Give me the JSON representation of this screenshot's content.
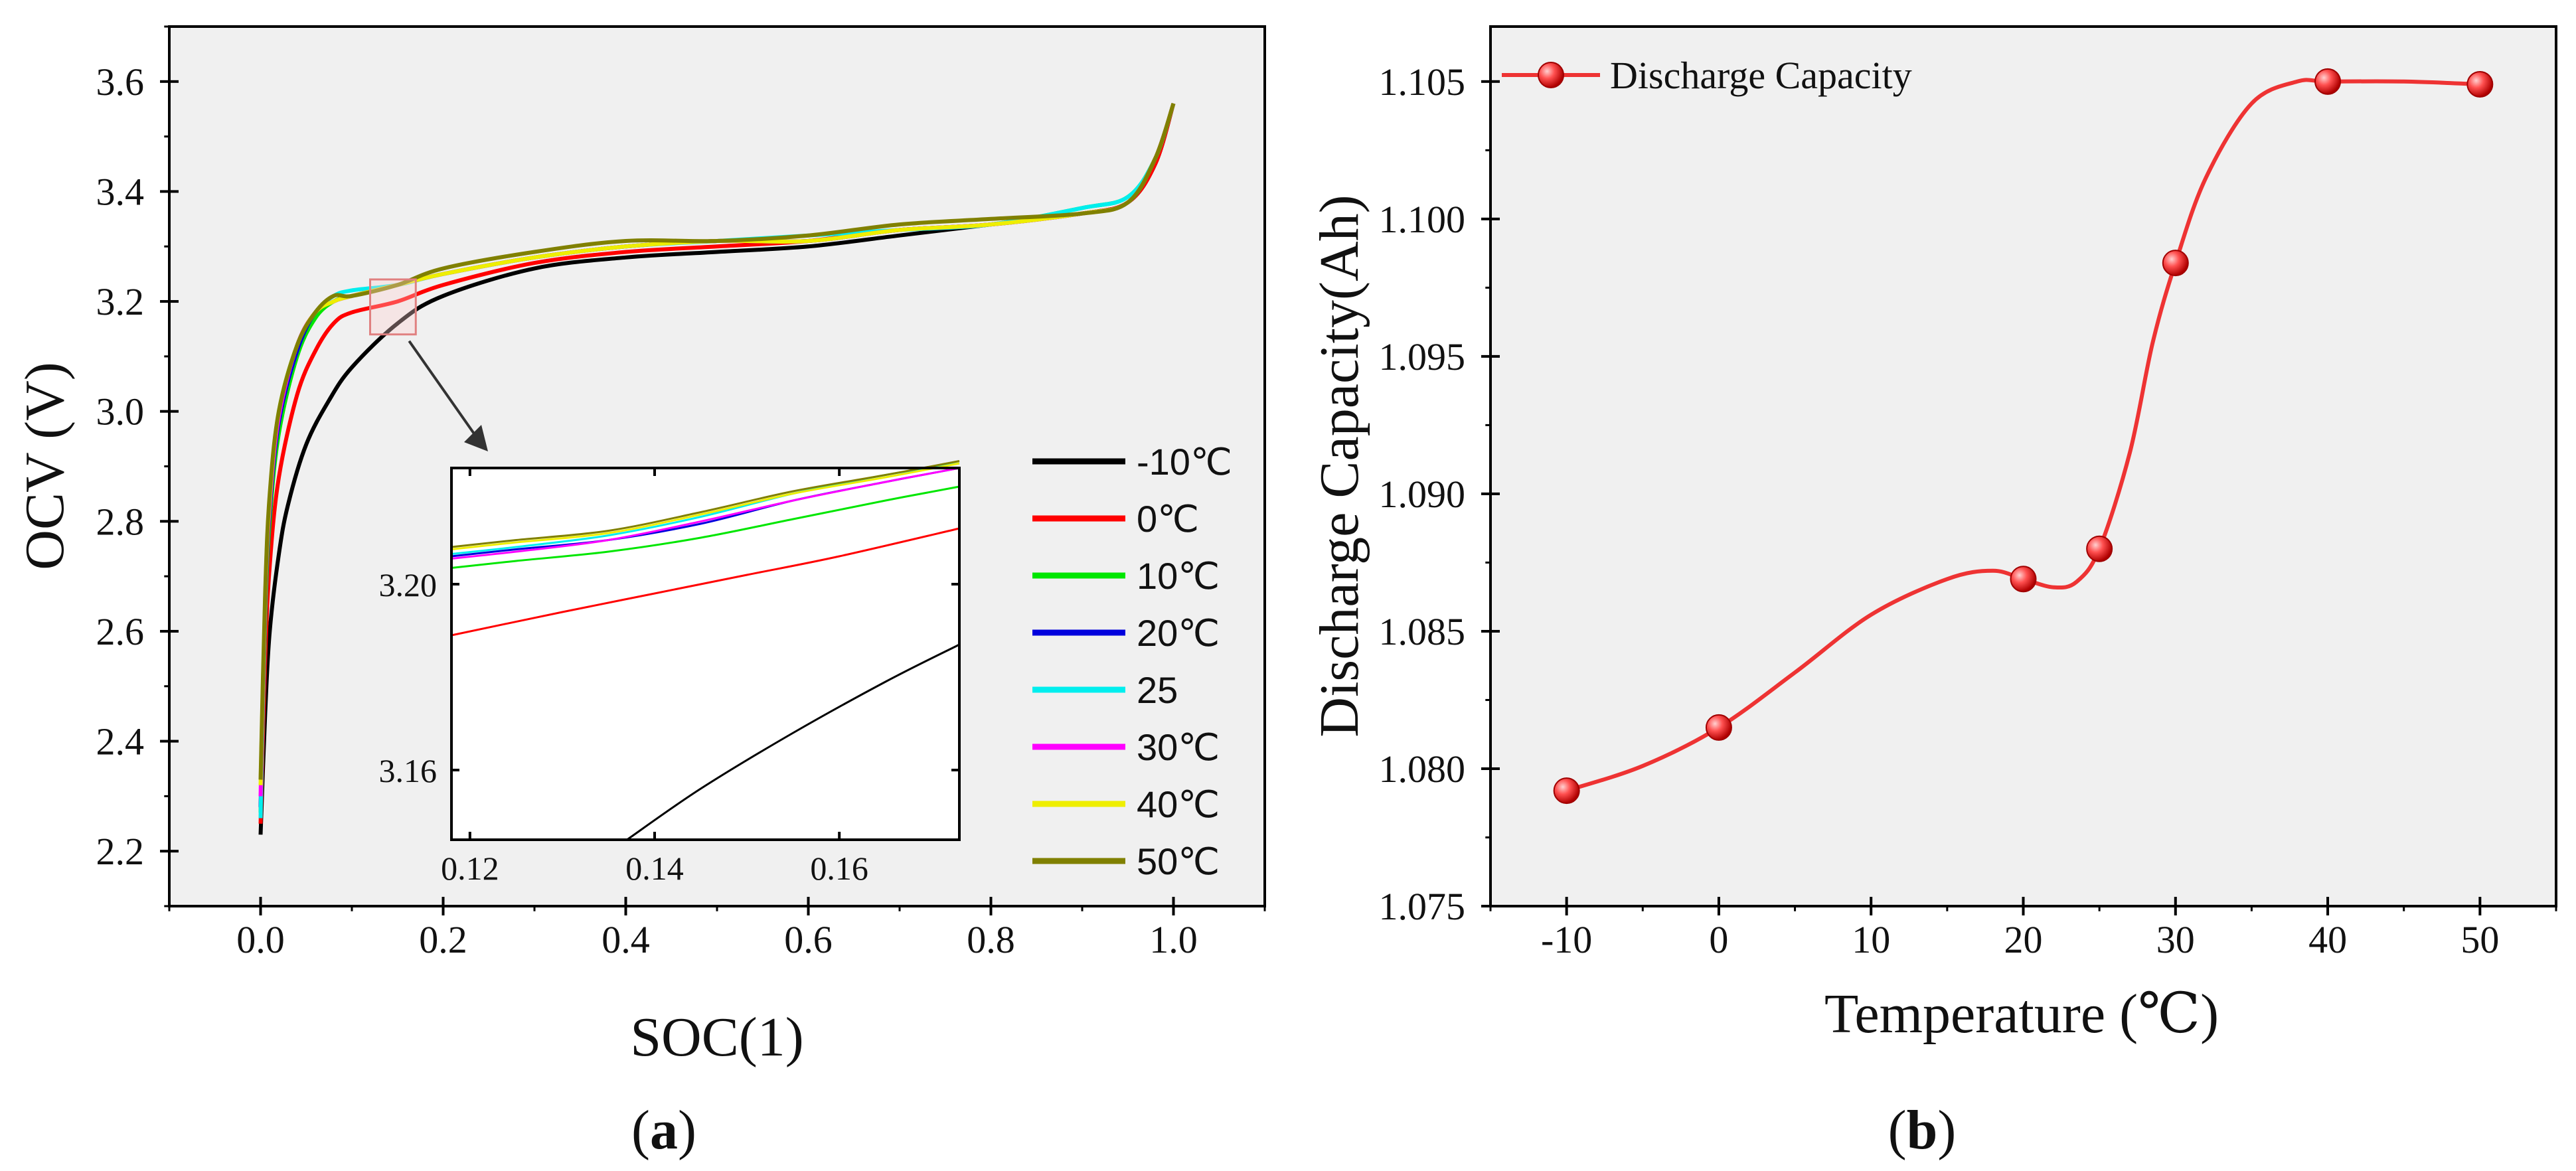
{
  "figure_labels": {
    "a": "(a)",
    "a_letter": "a",
    "b": "(b)",
    "b_letter": "b"
  },
  "chart_data": [
    {
      "id": "a",
      "type": "line",
      "title": "",
      "xlabel": "SOC(1)",
      "ylabel": "OCV (V)",
      "xlim": [
        -0.1,
        1.1
      ],
      "ylim": [
        2.1,
        3.7
      ],
      "xticks": [
        "0.0",
        "0.2",
        "0.4",
        "0.6",
        "0.8",
        "1.0"
      ],
      "yticks": [
        "2.2",
        "2.4",
        "2.6",
        "2.8",
        "3.0",
        "3.2",
        "3.4",
        "3.6"
      ],
      "legend_position": "right",
      "series": [
        {
          "name": "-10℃",
          "color": "#000000",
          "x": [
            0,
            0.005,
            0.01,
            0.02,
            0.03,
            0.05,
            0.075,
            0.1,
            0.15,
            0.2,
            0.3,
            0.4,
            0.5,
            0.6,
            0.7,
            0.8,
            0.9,
            0.95,
            0.98,
            1.0
          ],
          "y": [
            2.23,
            2.45,
            2.6,
            2.74,
            2.83,
            2.94,
            3.02,
            3.08,
            3.16,
            3.21,
            3.26,
            3.28,
            3.29,
            3.3,
            3.32,
            3.34,
            3.36,
            3.38,
            3.45,
            3.56
          ]
        },
        {
          "name": "0℃",
          "color": "#ff0000",
          "x": [
            0,
            0.005,
            0.01,
            0.02,
            0.04,
            0.06,
            0.08,
            0.1,
            0.15,
            0.2,
            0.3,
            0.4,
            0.5,
            0.6,
            0.7,
            0.8,
            0.9,
            0.95,
            0.98,
            1.0
          ],
          "y": [
            2.25,
            2.55,
            2.72,
            2.88,
            3.03,
            3.11,
            3.16,
            3.18,
            3.2,
            3.23,
            3.27,
            3.29,
            3.3,
            3.31,
            3.33,
            3.34,
            3.36,
            3.38,
            3.45,
            3.56
          ]
        },
        {
          "name": "10℃",
          "color": "#00e600",
          "x": [
            0,
            0.005,
            0.01,
            0.02,
            0.04,
            0.06,
            0.08,
            0.1,
            0.15,
            0.2,
            0.3,
            0.4,
            0.5,
            0.6,
            0.7,
            0.8,
            0.9,
            0.95,
            0.98,
            1.0
          ],
          "y": [
            2.27,
            2.62,
            2.8,
            2.96,
            3.1,
            3.17,
            3.2,
            3.21,
            3.23,
            3.25,
            3.28,
            3.3,
            3.31,
            3.31,
            3.33,
            3.34,
            3.37,
            3.39,
            3.46,
            3.56
          ]
        },
        {
          "name": "20℃",
          "color": "#0000dd",
          "x": [
            0,
            0.005,
            0.01,
            0.02,
            0.04,
            0.06,
            0.08,
            0.1,
            0.15,
            0.2,
            0.3,
            0.4,
            0.5,
            0.6,
            0.7,
            0.8,
            0.9,
            0.95,
            0.98,
            1.0
          ],
          "y": [
            2.28,
            2.64,
            2.82,
            2.98,
            3.11,
            3.18,
            3.2,
            3.21,
            3.23,
            3.25,
            3.28,
            3.3,
            3.31,
            3.31,
            3.33,
            3.34,
            3.36,
            3.38,
            3.46,
            3.56
          ]
        },
        {
          "name": "25",
          "color": "#00eeee",
          "x": [
            0,
            0.005,
            0.01,
            0.02,
            0.04,
            0.06,
            0.08,
            0.1,
            0.15,
            0.2,
            0.3,
            0.4,
            0.5,
            0.6,
            0.7,
            0.8,
            0.9,
            0.95,
            0.98,
            1.0
          ],
          "y": [
            2.26,
            2.66,
            2.84,
            3.0,
            3.12,
            3.18,
            3.21,
            3.22,
            3.23,
            3.25,
            3.28,
            3.3,
            3.31,
            3.32,
            3.33,
            3.34,
            3.37,
            3.39,
            3.46,
            3.56
          ]
        },
        {
          "name": "30℃",
          "color": "#ff00ff",
          "x": [
            0,
            0.005,
            0.01,
            0.02,
            0.04,
            0.06,
            0.08,
            0.1,
            0.15,
            0.2,
            0.3,
            0.4,
            0.5,
            0.6,
            0.7,
            0.8,
            0.9,
            0.95,
            0.98,
            1.0
          ],
          "y": [
            2.3,
            2.65,
            2.83,
            2.99,
            3.12,
            3.18,
            3.2,
            3.21,
            3.23,
            3.25,
            3.28,
            3.3,
            3.31,
            3.31,
            3.33,
            3.34,
            3.36,
            3.38,
            3.46,
            3.56
          ]
        },
        {
          "name": "40℃",
          "color": "#eeee00",
          "x": [
            0,
            0.005,
            0.01,
            0.02,
            0.04,
            0.06,
            0.08,
            0.1,
            0.15,
            0.2,
            0.3,
            0.4,
            0.5,
            0.6,
            0.7,
            0.8,
            0.9,
            0.95,
            0.98,
            1.0
          ],
          "y": [
            2.32,
            2.66,
            2.84,
            3.0,
            3.12,
            3.18,
            3.2,
            3.21,
            3.23,
            3.25,
            3.28,
            3.3,
            3.31,
            3.31,
            3.33,
            3.34,
            3.36,
            3.38,
            3.46,
            3.56
          ]
        },
        {
          "name": "50℃",
          "color": "#808000",
          "x": [
            0,
            0.005,
            0.01,
            0.02,
            0.04,
            0.06,
            0.08,
            0.1,
            0.15,
            0.2,
            0.3,
            0.4,
            0.5,
            0.6,
            0.7,
            0.8,
            0.9,
            0.95,
            0.98,
            1.0
          ],
          "y": [
            2.33,
            2.67,
            2.85,
            3.0,
            3.12,
            3.18,
            3.21,
            3.21,
            3.23,
            3.26,
            3.29,
            3.31,
            3.31,
            3.32,
            3.34,
            3.35,
            3.36,
            3.38,
            3.46,
            3.56
          ]
        }
      ],
      "zoom_box": {
        "xlim": [
          0.12,
          0.17
        ],
        "ylim": [
          3.14,
          3.24
        ]
      },
      "inset": {
        "xlim": [
          0.118,
          0.173
        ],
        "ylim": [
          3.145,
          3.225
        ],
        "xticks": [
          "0.12",
          "0.14",
          "0.16"
        ],
        "yticks": [
          "3.16",
          "3.20"
        ],
        "series": [
          {
            "name": "-10℃",
            "color": "#000000",
            "x": [
              0.137,
              0.145,
              0.155,
              0.165,
              0.173
            ],
            "y": [
              3.145,
              3.156,
              3.168,
              3.179,
              3.187
            ]
          },
          {
            "name": "0℃",
            "color": "#ff0000",
            "x": [
              0.118,
              0.13,
              0.14,
              0.15,
              0.16,
              0.173
            ],
            "y": [
              3.189,
              3.194,
              3.198,
              3.202,
              3.206,
              3.212
            ]
          },
          {
            "name": "10℃",
            "color": "#00e600",
            "x": [
              0.118,
              0.125,
              0.135,
              0.145,
              0.155,
              0.165,
              0.173
            ],
            "y": [
              3.2035,
              3.205,
              3.207,
              3.21,
              3.214,
              3.218,
              3.221
            ]
          },
          {
            "name": "20℃",
            "color": "#0000dd",
            "x": [
              0.118,
              0.125,
              0.135,
              0.145,
              0.155,
              0.165,
              0.173
            ],
            "y": [
              3.206,
              3.2075,
              3.2095,
              3.213,
              3.218,
              3.222,
              3.225
            ]
          },
          {
            "name": "25",
            "color": "#00eeee",
            "x": [
              0.118,
              0.125,
              0.135,
              0.145,
              0.155,
              0.165,
              0.173
            ],
            "y": [
              3.2065,
              3.208,
              3.2105,
              3.2145,
              3.2195,
              3.2235,
              3.226
            ]
          },
          {
            "name": "30℃",
            "color": "#ff00ff",
            "x": [
              0.118,
              0.125,
              0.135,
              0.145,
              0.155,
              0.165,
              0.173
            ],
            "y": [
              3.2055,
              3.207,
              3.2095,
              3.2135,
              3.218,
              3.222,
              3.225
            ]
          },
          {
            "name": "40℃",
            "color": "#eeee00",
            "x": [
              0.118,
              0.125,
              0.135,
              0.145,
              0.155,
              0.165,
              0.173
            ],
            "y": [
              3.2075,
              3.209,
              3.211,
              3.215,
              3.2195,
              3.223,
              3.226
            ]
          },
          {
            "name": "50℃",
            "color": "#808000",
            "x": [
              0.118,
              0.125,
              0.135,
              0.145,
              0.155,
              0.165,
              0.173
            ],
            "y": [
              3.208,
              3.2095,
              3.2115,
              3.2155,
              3.22,
              3.2235,
              3.2265
            ]
          }
        ]
      }
    },
    {
      "id": "b",
      "type": "line",
      "title": "",
      "xlabel": "Temperature (℃)",
      "ylabel": "Discharge Capacity(Ah)",
      "xlim": [
        -15,
        55
      ],
      "ylim": [
        1.075,
        1.107
      ],
      "xticks": [
        "-10",
        "0",
        "10",
        "20",
        "30",
        "40",
        "50"
      ],
      "yticks": [
        "1.075",
        "1.080",
        "1.085",
        "1.090",
        "1.095",
        "1.100",
        "1.105"
      ],
      "legend_position": "top-left",
      "series": [
        {
          "name": "Discharge Capacity",
          "color": "#ee3333",
          "x": [
            -10,
            0,
            20,
            25,
            30,
            40,
            50
          ],
          "y": [
            1.0792,
            1.0815,
            1.0869,
            1.088,
            1.0984,
            1.105,
            1.1049
          ]
        }
      ],
      "curve_control": {
        "x": [
          -10,
          -5,
          0,
          5,
          10,
          15,
          18,
          20,
          22,
          23.5,
          25,
          27,
          28.5,
          30,
          32,
          35,
          38,
          40,
          45,
          50
        ],
        "y": [
          1.0792,
          1.0801,
          1.0815,
          1.0835,
          1.0856,
          1.0869,
          1.0872,
          1.0869,
          1.0866,
          1.0868,
          1.088,
          1.0915,
          1.0955,
          1.0984,
          1.1015,
          1.1042,
          1.105,
          1.105,
          1.105,
          1.1049
        ]
      }
    }
  ]
}
